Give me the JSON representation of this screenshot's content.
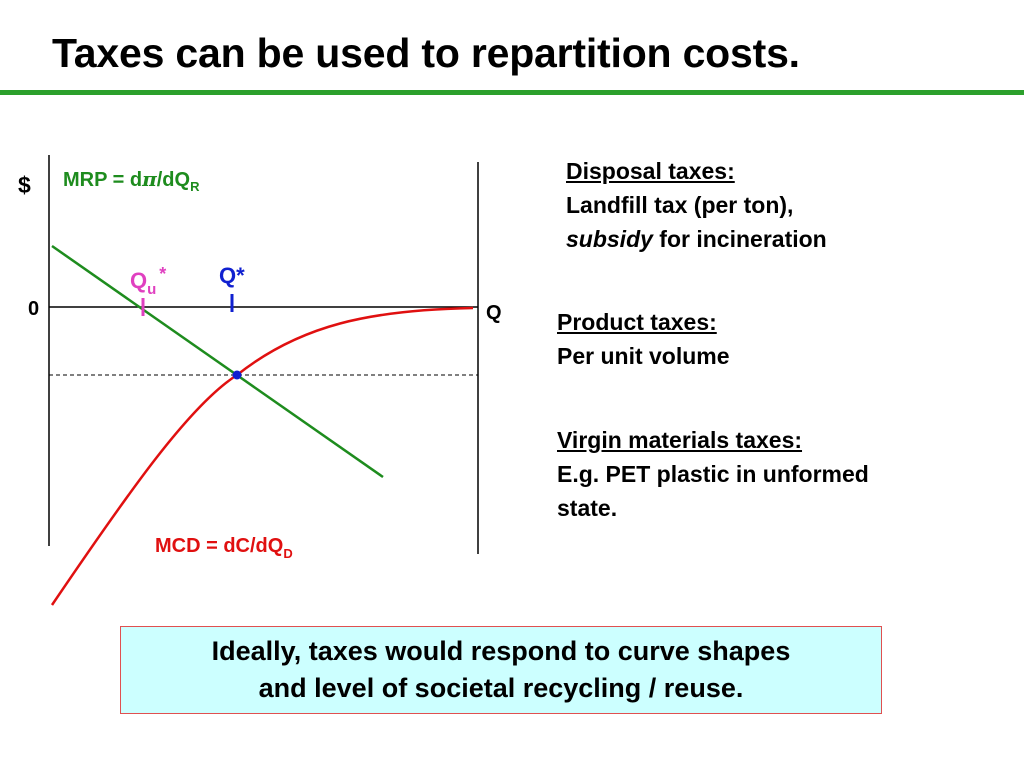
{
  "title": "Taxes can be used to repartition costs.",
  "diagram": {
    "y_axis_label": "$",
    "x_axis_label": "Q",
    "origin_label": "0",
    "mrp_label": {
      "main": "MRP = d",
      "pi": "π",
      "mid": "/dQ",
      "sub": "R"
    },
    "mcd_label": {
      "main": "MCD = dC/dQ",
      "sub": "D"
    },
    "qu_label": {
      "main": "Q",
      "sub": "u",
      "sup": "*"
    },
    "qstar_label": "Q*",
    "colors": {
      "mrp": "#1e8c1e",
      "mcd": "#e01010",
      "qu": "#e040c0",
      "qstar": "#1020d0",
      "axis": "#000000",
      "rule": "#2ca02c"
    }
  },
  "notes": {
    "disposal": {
      "heading": "Disposal taxes:",
      "line1": "Landfill tax (per ton),",
      "line2_em": "subsidy",
      "line2_rest": " for incineration"
    },
    "product": {
      "heading": "Product taxes:",
      "line1": "Per unit volume"
    },
    "virgin": {
      "heading": "Virgin materials taxes:",
      "line1": "E.g. PET plastic in unformed",
      "line2": "state."
    }
  },
  "callout": {
    "line1": "Ideally, taxes would respond to curve shapes",
    "line2": "and level of societal recycling / reuse."
  }
}
